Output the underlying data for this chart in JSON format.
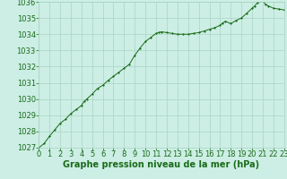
{
  "x": [
    0,
    0.5,
    1,
    1.5,
    2,
    2.5,
    3,
    3.5,
    4,
    4.25,
    4.5,
    5,
    5.5,
    6,
    6.5,
    7,
    7.5,
    8,
    8.5,
    9,
    9.5,
    10,
    10.5,
    11,
    11.25,
    11.5,
    12,
    12.5,
    13,
    13.5,
    14,
    14.5,
    15,
    15.5,
    16,
    16.5,
    17,
    17.25,
    17.5,
    18,
    18.5,
    19,
    19.5,
    20,
    20.25,
    20.5,
    21,
    21.25,
    21.5,
    22,
    22.5,
    23
  ],
  "y": [
    1027.0,
    1027.25,
    1027.7,
    1028.1,
    1028.5,
    1028.75,
    1029.1,
    1029.35,
    1029.6,
    1029.85,
    1030.0,
    1030.3,
    1030.65,
    1030.85,
    1031.15,
    1031.4,
    1031.65,
    1031.9,
    1032.15,
    1032.7,
    1033.15,
    1033.55,
    1033.8,
    1034.05,
    1034.1,
    1034.15,
    1034.1,
    1034.05,
    1034.0,
    1034.0,
    1034.0,
    1034.05,
    1034.1,
    1034.2,
    1034.3,
    1034.4,
    1034.55,
    1034.7,
    1034.8,
    1034.65,
    1034.85,
    1035.0,
    1035.3,
    1035.6,
    1035.75,
    1035.95,
    1036.05,
    1035.85,
    1035.75,
    1035.6,
    1035.55,
    1035.5
  ],
  "ylim": [
    1027,
    1036
  ],
  "xlim": [
    0,
    23
  ],
  "yticks": [
    1027,
    1028,
    1029,
    1030,
    1031,
    1032,
    1033,
    1034,
    1035,
    1036
  ],
  "xticks": [
    0,
    1,
    2,
    3,
    4,
    5,
    6,
    7,
    8,
    9,
    10,
    11,
    12,
    13,
    14,
    15,
    16,
    17,
    18,
    19,
    20,
    21,
    22,
    23
  ],
  "xlabel": "Graphe pression niveau de la mer (hPa)",
  "line_color": "#1a6b1a",
  "marker_color": "#1a6b1a",
  "bg_color": "#cceee4",
  "grid_color": "#aad4c4",
  "tick_label_color": "#1a6b1a",
  "xlabel_color": "#1a6b1a",
  "xlabel_fontsize": 7.0,
  "tick_fontsize": 6.0
}
